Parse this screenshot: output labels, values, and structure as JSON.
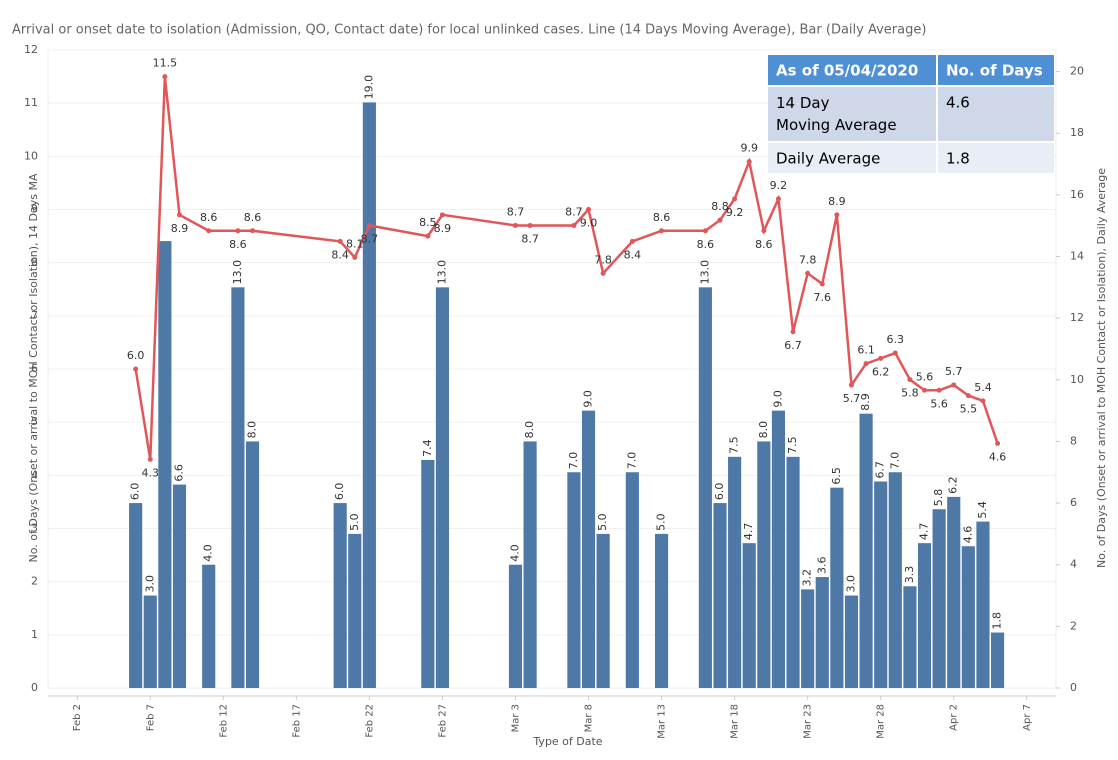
{
  "chart_data": {
    "type": "bar-line",
    "title": "Arrival or onset date to isolation (Admission, QO,  Contact date) for local unlinked cases. Line (14 Days Moving Average), Bar (Daily Average)",
    "x_label": "Type of Date",
    "y_label": "No. of Days (Onset or arrival to MOH Contact or Isolation), 14 Days MA",
    "y2_label": "No. of Days (Onset or arrival to MOH Contact or Isolation), Daily Average",
    "x": [
      "Feb 6",
      "Feb 7",
      "Feb 8",
      "Feb 9",
      "Feb 11",
      "Feb 13",
      "Feb 14",
      "Feb 20",
      "Feb 21",
      "Feb 22",
      "Feb 26",
      "Feb 27",
      "Mar 3",
      "Mar 4",
      "Mar 7",
      "Mar 8",
      "Mar 9",
      "Mar 11",
      "Mar 13",
      "Mar 16",
      "Mar 17",
      "Mar 18",
      "Mar 19",
      "Mar 20",
      "Mar 21",
      "Mar 22",
      "Mar 23",
      "Mar 24",
      "Mar 25",
      "Mar 26",
      "Mar 27",
      "Mar 28",
      "Mar 29",
      "Mar 30",
      "Mar 31",
      "Apr 1",
      "Apr 2",
      "Apr 3",
      "Apr 4",
      "Apr 5"
    ],
    "series": [
      {
        "type": "bar",
        "axis": "y2",
        "color": "#4e79a7",
        "values": [
          6.0,
          3.0,
          14.5,
          6.6,
          4.0,
          13.0,
          8.0,
          6.0,
          5.0,
          19.0,
          7.4,
          13.0,
          4.0,
          8.0,
          7.0,
          9.0,
          5.0,
          7.0,
          5.0,
          13.0,
          6.0,
          7.5,
          4.7,
          8.0,
          9.0,
          7.5,
          3.2,
          3.6,
          6.5,
          3.0,
          8.9,
          6.7,
          7.0,
          3.3,
          4.7,
          5.8,
          6.2,
          4.6,
          5.4,
          1.8
        ],
        "value_labels": [
          "6.0",
          "3.0",
          null,
          "6.6",
          "4.0",
          "13.0",
          "8.0",
          "6.0",
          "5.0",
          "19.0",
          "7.4",
          "13.0",
          "4.0",
          "8.0",
          "7.0",
          "9.0",
          "5.0",
          "7.0",
          "5.0",
          "13.0",
          "6.0",
          "7.5",
          "4.7",
          "8.0",
          "9.0",
          "7.5",
          "3.2",
          "3.6",
          "6.5",
          "3.0",
          "8.9",
          "6.7",
          "7.0",
          "3.3",
          "4.7",
          "5.8",
          "6.2",
          "4.6",
          "5.4",
          "1.8"
        ]
      },
      {
        "type": "line",
        "axis": "y",
        "color": "#e15759",
        "values": [
          6.0,
          4.3,
          11.5,
          8.9,
          8.6,
          8.6,
          8.6,
          8.4,
          8.1,
          8.7,
          8.5,
          8.9,
          8.7,
          8.7,
          8.7,
          9.0,
          7.8,
          8.4,
          8.6,
          8.6,
          8.8,
          9.2,
          9.9,
          8.6,
          9.2,
          6.7,
          7.8,
          7.6,
          8.9,
          5.7,
          6.1,
          6.2,
          6.3,
          5.8,
          5.6,
          5.6,
          5.7,
          5.5,
          5.4,
          4.6
        ],
        "value_labels": [
          "6.0",
          "4.3",
          "11.5",
          "8.9",
          "8.6",
          "8.6",
          "8.6",
          "8.4",
          "8.1",
          "8.7",
          "8.5",
          "8.9",
          "8.7",
          "8.7",
          "8.7",
          "9.0",
          "7.8",
          "8.4",
          "8.6",
          "8.6",
          "8.8",
          "9.2",
          "9.9",
          "8.6",
          "9.2",
          "6.7",
          "7.8",
          "7.6",
          "8.9",
          "5.7",
          "6.1",
          "6.2",
          "6.3",
          "5.8",
          "5.6",
          "5.6",
          "5.7",
          "5.5",
          "5.4",
          "4.6"
        ]
      }
    ],
    "xlim": [
      "Jan 31",
      "Apr 9"
    ],
    "xticks": [
      "Feb 2",
      "Feb 7",
      "Feb 12",
      "Feb 17",
      "Feb 22",
      "Feb 27",
      "Mar 3",
      "Mar 8",
      "Mar 13",
      "Mar 18",
      "Mar 23",
      "Mar 28",
      "Apr 2",
      "Apr 7"
    ],
    "ylim": [
      0,
      12
    ],
    "yticks": [
      0,
      1,
      2,
      3,
      4,
      5,
      6,
      7,
      8,
      9,
      10,
      11,
      12
    ],
    "y2lim": [
      0,
      20.7
    ],
    "y2ticks": [
      0,
      2,
      4,
      6,
      8,
      10,
      12,
      14,
      16,
      18,
      20
    ],
    "grid": true,
    "table": {
      "header": [
        "As of 05/04/2020",
        "No. of Days"
      ],
      "rows": [
        [
          "14 Day Moving Average",
          "4.6"
        ],
        [
          "Daily Average",
          "1.8"
        ]
      ]
    }
  }
}
